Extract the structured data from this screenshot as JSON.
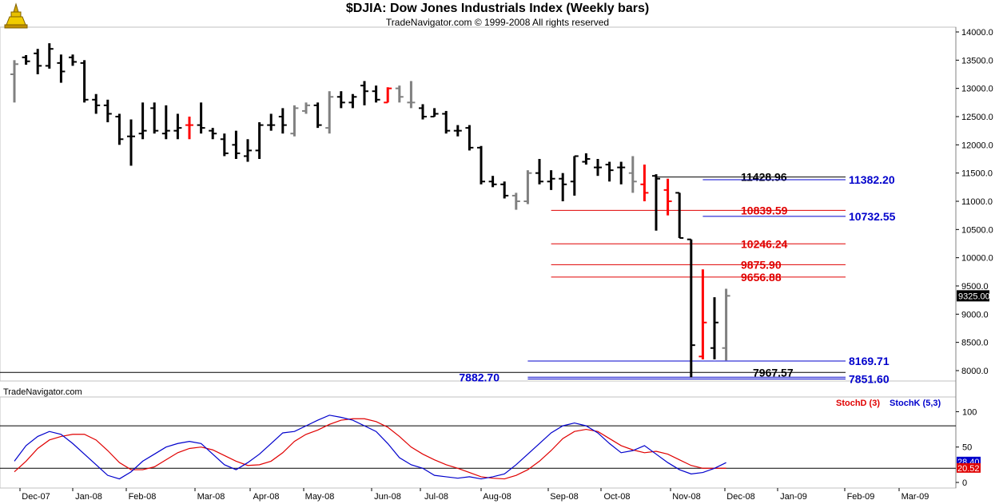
{
  "header": {
    "title": "$DJIA:  Dow Jones Industrials Index  (Weekly bars)",
    "subtitle": "TradeNavigator.com © 1999-2008 All rights reserved"
  },
  "watermark": "TradeNavigator.com",
  "colors": {
    "up_bar": "#000000",
    "down_bar": "#808080",
    "highlight_bar": "#ff0000",
    "resistance": "#e00000",
    "support": "#0000cc",
    "stoch_d": "#e00000",
    "stoch_k": "#0000cc"
  },
  "chart_data": [
    {
      "type": "ohlc",
      "title": "$DJIA:  Dow Jones Industrials Index  (Weekly bars)",
      "y_axis": {
        "ylim": [
          7700,
          14200
        ],
        "ticks": [
          "14000.0",
          "13500.0",
          "13000.0",
          "12500.0",
          "12000.0",
          "11500.0",
          "11000.0",
          "10500.0",
          "10000.0",
          "9500.0",
          "9000.0",
          "8500.0",
          "8000.0"
        ]
      },
      "x_axis": {
        "tick_labels": [
          "Dec-07",
          "Jan-08",
          "Feb-08",
          "Mar-08",
          "Apr-08",
          "May-08",
          "Jun-08",
          "Jul-08",
          "Aug-08",
          "Sep-08",
          "Oct-08",
          "Nov-08",
          "Dec-08",
          "Jan-09",
          "Feb-09",
          "Mar-09"
        ]
      },
      "last_price_label": "9325.00",
      "bars": [
        {
          "o": 13250,
          "h": 13500,
          "l": 12750,
          "c": 13430,
          "color": "gray"
        },
        {
          "o": 13550,
          "h": 13590,
          "l": 13420,
          "c": 13480,
          "color": "black"
        },
        {
          "o": 13620,
          "h": 13700,
          "l": 13250,
          "c": 13400,
          "color": "black"
        },
        {
          "o": 13400,
          "h": 13800,
          "l": 13350,
          "c": 13700,
          "color": "black"
        },
        {
          "o": 13450,
          "h": 13600,
          "l": 13100,
          "c": 13300,
          "color": "black"
        },
        {
          "o": 13550,
          "h": 13600,
          "l": 13400,
          "c": 13470,
          "color": "black"
        },
        {
          "o": 13450,
          "h": 13500,
          "l": 12750,
          "c": 12800,
          "color": "black"
        },
        {
          "o": 12800,
          "h": 12900,
          "l": 12550,
          "c": 12700,
          "color": "black"
        },
        {
          "o": 12700,
          "h": 12800,
          "l": 12400,
          "c": 12550,
          "color": "black"
        },
        {
          "o": 12500,
          "h": 12550,
          "l": 12000,
          "c": 12100,
          "color": "black"
        },
        {
          "o": 12150,
          "h": 12450,
          "l": 11630,
          "c": 12150,
          "color": "black"
        },
        {
          "o": 12200,
          "h": 12750,
          "l": 12100,
          "c": 12250,
          "color": "black"
        },
        {
          "o": 12650,
          "h": 12750,
          "l": 12200,
          "c": 12250,
          "color": "black"
        },
        {
          "o": 12200,
          "h": 12700,
          "l": 12100,
          "c": 12250,
          "color": "black"
        },
        {
          "o": 12250,
          "h": 12550,
          "l": 12100,
          "c": 12300,
          "color": "black"
        },
        {
          "o": 12350,
          "h": 12500,
          "l": 12100,
          "c": 12350,
          "color": "red"
        },
        {
          "o": 12350,
          "h": 12750,
          "l": 12200,
          "c": 12300,
          "color": "black"
        },
        {
          "o": 12250,
          "h": 12300,
          "l": 12100,
          "c": 12200,
          "color": "black"
        },
        {
          "o": 12100,
          "h": 12200,
          "l": 11800,
          "c": 11850,
          "color": "black"
        },
        {
          "o": 12000,
          "h": 12250,
          "l": 11750,
          "c": 11850,
          "color": "black"
        },
        {
          "o": 11800,
          "h": 12100,
          "l": 11700,
          "c": 11900,
          "color": "black"
        },
        {
          "o": 11900,
          "h": 12400,
          "l": 11750,
          "c": 12350,
          "color": "black"
        },
        {
          "o": 12350,
          "h": 12550,
          "l": 12250,
          "c": 12350,
          "color": "black"
        },
        {
          "o": 12500,
          "h": 12650,
          "l": 12200,
          "c": 12350,
          "color": "black"
        },
        {
          "o": 12200,
          "h": 12700,
          "l": 12150,
          "c": 12650,
          "color": "gray"
        },
        {
          "o": 12600,
          "h": 12750,
          "l": 12550,
          "c": 12700,
          "color": "gray"
        },
        {
          "o": 12700,
          "h": 12750,
          "l": 12300,
          "c": 12350,
          "color": "black"
        },
        {
          "o": 12300,
          "h": 12950,
          "l": 12200,
          "c": 12850,
          "color": "gray"
        },
        {
          "o": 12850,
          "h": 12950,
          "l": 12650,
          "c": 12750,
          "color": "black"
        },
        {
          "o": 12750,
          "h": 12900,
          "l": 12650,
          "c": 12850,
          "color": "black"
        },
        {
          "o": 13050,
          "h": 13130,
          "l": 12700,
          "c": 12950,
          "color": "black"
        },
        {
          "o": 12950,
          "h": 13050,
          "l": 12750,
          "c": 12800,
          "color": "black"
        },
        {
          "o": 12750,
          "h": 13020,
          "l": 12750,
          "c": 13000,
          "color": "red"
        },
        {
          "o": 13000,
          "h": 13050,
          "l": 12750,
          "c": 12850,
          "color": "gray"
        },
        {
          "o": 12750,
          "h": 13130,
          "l": 12650,
          "c": 12750,
          "color": "gray"
        },
        {
          "o": 12650,
          "h": 12720,
          "l": 12450,
          "c": 12500,
          "color": "black"
        },
        {
          "o": 12500,
          "h": 12650,
          "l": 12500,
          "c": 12550,
          "color": "black"
        },
        {
          "o": 12550,
          "h": 12600,
          "l": 12200,
          "c": 12250,
          "color": "black"
        },
        {
          "o": 12250,
          "h": 12350,
          "l": 12150,
          "c": 12250,
          "color": "black"
        },
        {
          "o": 12300,
          "h": 12350,
          "l": 11900,
          "c": 11950,
          "color": "black"
        },
        {
          "o": 11950,
          "h": 11980,
          "l": 11300,
          "c": 11350,
          "color": "black"
        },
        {
          "o": 11350,
          "h": 11450,
          "l": 11250,
          "c": 11300,
          "color": "black"
        },
        {
          "o": 11300,
          "h": 11350,
          "l": 11050,
          "c": 11100,
          "color": "black"
        },
        {
          "o": 11100,
          "h": 11150,
          "l": 10850,
          "c": 11000,
          "color": "gray"
        },
        {
          "o": 11000,
          "h": 11550,
          "l": 10950,
          "c": 11500,
          "color": "gray"
        },
        {
          "o": 11500,
          "h": 11750,
          "l": 11300,
          "c": 11350,
          "color": "black"
        },
        {
          "o": 11350,
          "h": 11550,
          "l": 11200,
          "c": 11400,
          "color": "black"
        },
        {
          "o": 11400,
          "h": 11500,
          "l": 11000,
          "c": 11300,
          "color": "black"
        },
        {
          "o": 11350,
          "h": 11800,
          "l": 11100,
          "c": 11800,
          "color": "black"
        },
        {
          "o": 11700,
          "h": 11850,
          "l": 11650,
          "c": 11750,
          "color": "black"
        },
        {
          "o": 11600,
          "h": 11750,
          "l": 11450,
          "c": 11600,
          "color": "black"
        },
        {
          "o": 11650,
          "h": 11700,
          "l": 11350,
          "c": 11550,
          "color": "black"
        },
        {
          "o": 11600,
          "h": 11700,
          "l": 11300,
          "c": 11600,
          "color": "black"
        },
        {
          "o": 11500,
          "h": 11800,
          "l": 11150,
          "c": 11350,
          "color": "gray"
        },
        {
          "o": 11300,
          "h": 11650,
          "l": 11000,
          "c": 11150,
          "color": "red"
        },
        {
          "o": 11450,
          "h": 11480,
          "l": 10480,
          "c": 11400,
          "color": "black"
        },
        {
          "o": 11200,
          "h": 11400,
          "l": 10750,
          "c": 11000,
          "color": "red"
        },
        {
          "o": 11150,
          "h": 11150,
          "l": 10350,
          "c": 10350,
          "color": "black"
        },
        {
          "o": 10325,
          "h": 10325,
          "l": 7882,
          "c": 8451,
          "color": "black"
        },
        {
          "o": 8250,
          "h": 9794,
          "l": 8200,
          "c": 8852,
          "color": "red"
        },
        {
          "o": 8400,
          "h": 9300,
          "l": 8200,
          "c": 8852,
          "color": "black"
        },
        {
          "o": 8400,
          "h": 9450,
          "l": 8180,
          "c": 9325,
          "color": "gray"
        }
      ],
      "levels": [
        {
          "value": 11428.96,
          "label": "11428.96",
          "color": "black",
          "from_bar": 55
        },
        {
          "value": 11382.2,
          "label": "11382.20",
          "color": "blue",
          "from_bar": 59
        },
        {
          "value": 10839.59,
          "label": "10839.59",
          "color": "red",
          "from_bar": 46
        },
        {
          "value": 10732.55,
          "label": "10732.55",
          "color": "blue",
          "from_bar": 59
        },
        {
          "value": 10246.24,
          "label": "10246.24",
          "color": "red",
          "from_bar": 46
        },
        {
          "value": 9875.9,
          "label": "9875.90",
          "color": "red",
          "from_bar": 46
        },
        {
          "value": 9656.88,
          "label": "9656.88",
          "color": "red",
          "from_bar": 46
        },
        {
          "value": 8169.71,
          "label": "8169.71",
          "color": "blue",
          "from_bar": 44
        },
        {
          "value": 7967.57,
          "label": "7967.57",
          "color": "black",
          "from_bar": 0
        },
        {
          "value": 7882.7,
          "label": "7882.70",
          "color": "blue",
          "from_bar": 44,
          "label_left": true
        },
        {
          "value": 7851.6,
          "label": "7851.60",
          "color": "blue",
          "from_bar": 44
        }
      ]
    },
    {
      "type": "line",
      "title": "Stochastic",
      "ylim": [
        -5,
        115
      ],
      "y_ticks": [
        "100",
        "50",
        "0"
      ],
      "reference_lines": [
        80,
        20
      ],
      "current_values": {
        "stochK": "28.40",
        "stochD": "20.52"
      },
      "series": [
        {
          "name": "StochD (3)",
          "color": "red",
          "values": [
            15,
            30,
            48,
            60,
            65,
            68,
            68,
            60,
            45,
            28,
            18,
            18,
            22,
            32,
            42,
            48,
            50,
            46,
            38,
            30,
            24,
            25,
            30,
            42,
            58,
            68,
            74,
            82,
            88,
            90,
            90,
            86,
            78,
            65,
            50,
            40,
            32,
            25,
            20,
            14,
            8,
            6,
            5,
            10,
            18,
            30,
            45,
            62,
            72,
            75,
            72,
            62,
            52,
            46,
            42,
            44,
            40,
            32,
            24,
            20,
            20,
            20
          ]
        },
        {
          "name": "StochK (5,3)",
          "color": "blue",
          "values": [
            30,
            52,
            65,
            72,
            68,
            55,
            40,
            25,
            10,
            5,
            15,
            30,
            40,
            50,
            55,
            58,
            55,
            40,
            25,
            18,
            28,
            40,
            55,
            70,
            72,
            80,
            88,
            95,
            92,
            88,
            80,
            72,
            55,
            35,
            25,
            20,
            10,
            8,
            6,
            8,
            5,
            8,
            12,
            25,
            40,
            55,
            70,
            80,
            84,
            80,
            70,
            55,
            42,
            45,
            52,
            40,
            28,
            18,
            12,
            14,
            20,
            28
          ]
        }
      ],
      "x_tick_labels": [
        "Dec-07",
        "Jan-08",
        "Feb-08",
        "Mar-08",
        "Apr-08",
        "May-08",
        "Jun-08",
        "Jul-08",
        "Aug-08",
        "Sep-08",
        "Oct-08",
        "Nov-08",
        "Dec-08",
        "Jan-09",
        "Feb-09",
        "Mar-09"
      ]
    }
  ]
}
